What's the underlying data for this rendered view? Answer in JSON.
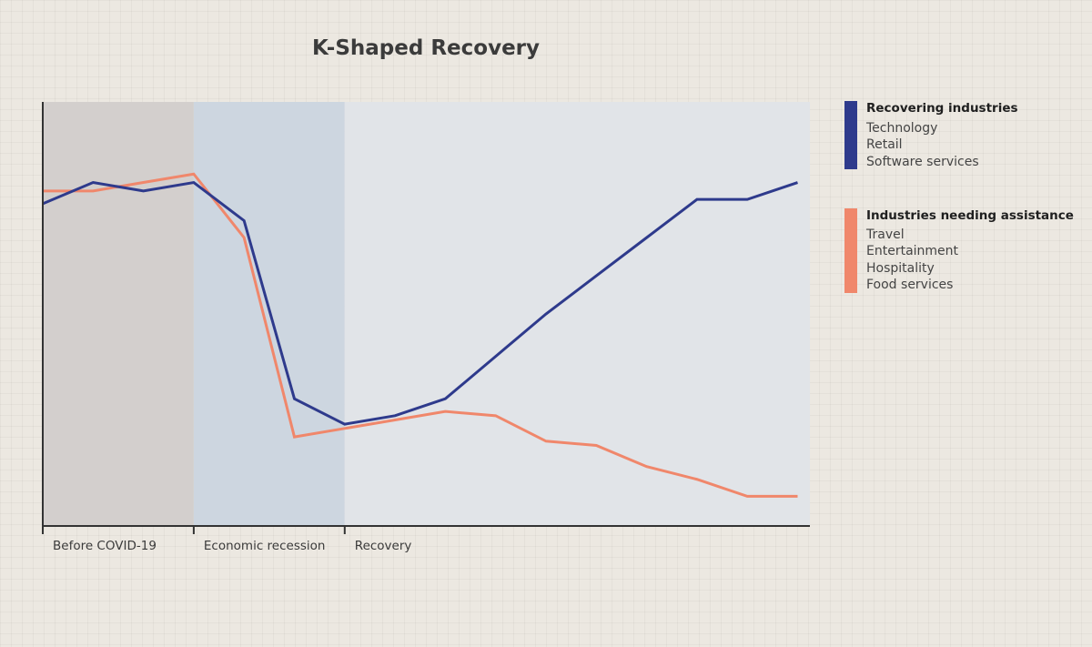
{
  "chart_data": {
    "type": "line",
    "title": "K-Shaped Recovery",
    "xlabel": "",
    "ylabel": "",
    "x": [
      0,
      1,
      2,
      3,
      4,
      5,
      6,
      7,
      8,
      9,
      10,
      11,
      12,
      13,
      14,
      15
    ],
    "ylim": [
      0,
      100
    ],
    "grid": false,
    "legend_placement": "right",
    "regions": [
      {
        "label": "Before COVID-19",
        "from": 0,
        "to": 3,
        "color": "#d3cfcd"
      },
      {
        "label": "Economic recession",
        "from": 3,
        "to": 6,
        "color": "#cdd6e0"
      },
      {
        "label": "Recovery",
        "from": 6,
        "to": 15.25,
        "color": "#e1e4e8"
      }
    ],
    "series": [
      {
        "name": "Recovering industries",
        "color": "#2e3a8c",
        "members": [
          "Technology",
          "Retail",
          "Software services"
        ],
        "values": [
          76,
          81,
          79,
          81,
          72,
          30,
          24,
          26,
          30,
          40,
          50,
          59,
          68,
          77,
          77,
          81
        ]
      },
      {
        "name": "Industries needing assistance",
        "color": "#f0876b",
        "members": [
          "Travel",
          "Entertainment",
          "Hospitality",
          "Food services"
        ],
        "values": [
          79,
          79,
          81,
          83,
          68,
          21,
          23,
          25,
          27,
          26,
          20,
          19,
          14,
          11,
          7,
          7
        ]
      }
    ]
  }
}
